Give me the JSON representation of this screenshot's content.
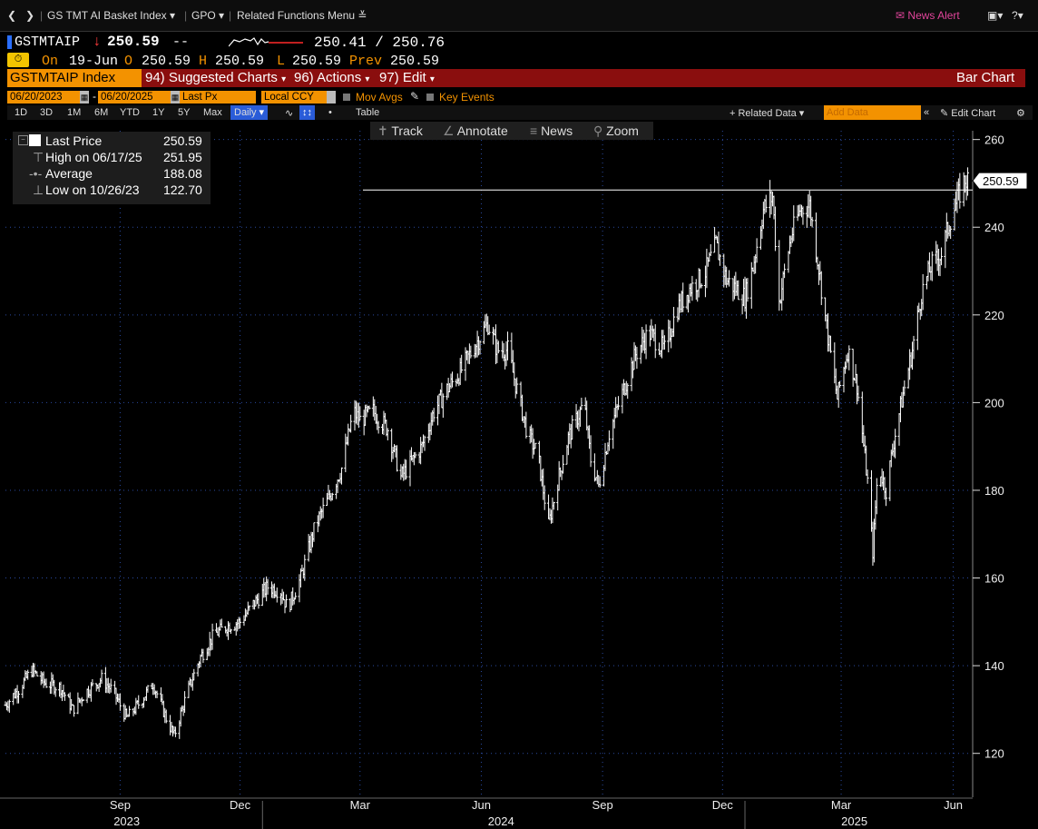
{
  "topbar": {
    "back_icon": "chevron-left-icon",
    "forward_icon": "chevron-right-icon",
    "basket_label": "GS TMT AI Basket Index",
    "gpo_label": "GPO",
    "related_label": "Related Functions Menu",
    "news_alert": "News Alert",
    "help_label": "?"
  },
  "quote": {
    "ticker": "GSTMTAIP",
    "last": "250.59",
    "change": "--",
    "bid_ask": "250.41 / 250.76",
    "on_label": "On",
    "date": "19-Jun",
    "open_label": "O",
    "open": "250.59",
    "high_label": "H",
    "high": "250.59",
    "low_label": "L",
    "low": "250.59",
    "prev_label": "Prev",
    "prev": "250.59"
  },
  "fnbar": {
    "security": "GSTMTAIP Index",
    "suggested": "94) Suggested Charts",
    "actions": "96) Actions",
    "edit": "97) Edit",
    "chart_type": "Bar Chart"
  },
  "datebar": {
    "start": "06/20/2023",
    "end": "06/20/2025",
    "field": "Last Px",
    "currency": "Local CCY",
    "mov_avgs": "Mov Avgs",
    "key_events": "Key Events"
  },
  "rangebar": {
    "ranges": [
      "1D",
      "3D",
      "1M",
      "6M",
      "YTD",
      "1Y",
      "5Y",
      "Max"
    ],
    "period": "Daily",
    "table": "Table",
    "related_data": "+ Related Data",
    "add_data": "Add Data",
    "edit_chart": "Edit Chart"
  },
  "tools": {
    "track": "Track",
    "annotate": "Annotate",
    "news": "News",
    "zoom": "Zoom"
  },
  "legend": {
    "last_label": "Last Price",
    "last_value": "250.59",
    "high_label": "High on 06/17/25",
    "high_value": "251.95",
    "avg_label": "Average",
    "avg_value": "188.08",
    "low_label": "Low on 10/26/23",
    "low_value": "122.70"
  },
  "colors": {
    "background": "#000000",
    "accent_orange": "#f39200",
    "function_bar_red": "#8a0e0e",
    "down_red": "#ff3b3b",
    "bar_color": "#ffffff",
    "axis_blue": "#2a4aa0"
  },
  "chart_data": {
    "type": "bar",
    "ylim": [
      110,
      262
    ],
    "yticks": [
      120,
      140,
      160,
      180,
      200,
      220,
      240,
      260
    ],
    "last_value_label": "250.59",
    "reference_line": 248.5,
    "x_month_labels": [
      "Sep",
      "Dec",
      "Mar",
      "Jun",
      "Sep",
      "Dec",
      "Mar",
      "Jun"
    ],
    "x_year_labels": [
      "2023",
      "2024",
      "2025"
    ],
    "x_range": [
      "2023-06-20",
      "2025-06-20"
    ],
    "series": [
      {
        "points": [
          [
            "2023-06-20",
            131
          ],
          [
            "2023-07-01",
            135
          ],
          [
            "2023-07-10",
            139
          ],
          [
            "2023-07-20",
            136
          ],
          [
            "2023-08-01",
            135
          ],
          [
            "2023-08-10",
            130
          ],
          [
            "2023-08-20",
            134
          ],
          [
            "2023-09-01",
            137
          ],
          [
            "2023-09-10",
            134
          ],
          [
            "2023-09-20",
            128
          ],
          [
            "2023-10-01",
            132
          ],
          [
            "2023-10-10",
            136
          ],
          [
            "2023-10-20",
            128
          ],
          [
            "2023-10-26",
            124
          ],
          [
            "2023-11-05",
            134
          ],
          [
            "2023-11-15",
            142
          ],
          [
            "2023-11-25",
            147
          ],
          [
            "2023-12-05",
            149
          ],
          [
            "2023-12-15",
            150
          ],
          [
            "2023-12-25",
            154
          ],
          [
            "2024-01-05",
            158
          ],
          [
            "2024-01-15",
            157
          ],
          [
            "2024-01-20",
            153
          ],
          [
            "2024-01-30",
            160
          ],
          [
            "2024-02-10",
            172
          ],
          [
            "2024-02-20",
            178
          ],
          [
            "2024-03-01",
            185
          ],
          [
            "2024-03-10",
            198
          ],
          [
            "2024-03-15",
            196
          ],
          [
            "2024-03-25",
            198
          ],
          [
            "2024-04-05",
            194
          ],
          [
            "2024-04-15",
            183
          ],
          [
            "2024-04-22",
            186
          ],
          [
            "2024-05-01",
            190
          ],
          [
            "2024-05-10",
            198
          ],
          [
            "2024-05-20",
            203
          ],
          [
            "2024-05-30",
            207
          ],
          [
            "2024-06-10",
            213
          ],
          [
            "2024-06-20",
            218
          ],
          [
            "2024-06-27",
            212
          ],
          [
            "2024-07-05",
            212
          ],
          [
            "2024-07-12",
            203
          ],
          [
            "2024-07-20",
            193
          ],
          [
            "2024-07-28",
            188
          ],
          [
            "2024-08-05",
            172
          ],
          [
            "2024-08-12",
            182
          ],
          [
            "2024-08-20",
            192
          ],
          [
            "2024-09-01",
            200
          ],
          [
            "2024-09-06",
            187
          ],
          [
            "2024-09-12",
            181
          ],
          [
            "2024-09-20",
            193
          ],
          [
            "2024-10-01",
            203
          ],
          [
            "2024-10-10",
            211
          ],
          [
            "2024-10-20",
            216
          ],
          [
            "2024-11-01",
            212
          ],
          [
            "2024-11-10",
            221
          ],
          [
            "2024-11-20",
            226
          ],
          [
            "2024-12-01",
            229
          ],
          [
            "2024-12-10",
            236
          ],
          [
            "2024-12-18",
            228
          ],
          [
            "2025-01-01",
            224
          ],
          [
            "2025-01-07",
            231
          ],
          [
            "2025-01-15",
            244
          ],
          [
            "2025-01-22",
            247
          ],
          [
            "2025-01-27",
            223
          ],
          [
            "2025-02-05",
            238
          ],
          [
            "2025-02-12",
            244
          ],
          [
            "2025-02-19",
            245
          ],
          [
            "2025-02-25",
            233
          ],
          [
            "2025-03-05",
            215
          ],
          [
            "2025-03-12",
            201
          ],
          [
            "2025-03-20",
            212
          ],
          [
            "2025-03-27",
            204
          ],
          [
            "2025-04-04",
            182
          ],
          [
            "2025-04-08",
            166
          ],
          [
            "2025-04-12",
            186
          ],
          [
            "2025-04-18",
            180
          ],
          [
            "2025-04-25",
            193
          ],
          [
            "2025-05-01",
            202
          ],
          [
            "2025-05-08",
            212
          ],
          [
            "2025-05-15",
            225
          ],
          [
            "2025-05-22",
            231
          ],
          [
            "2025-05-30",
            234
          ],
          [
            "2025-06-05",
            241
          ],
          [
            "2025-06-12",
            247
          ],
          [
            "2025-06-17",
            251
          ],
          [
            "2025-06-19",
            250.59
          ]
        ]
      }
    ]
  }
}
